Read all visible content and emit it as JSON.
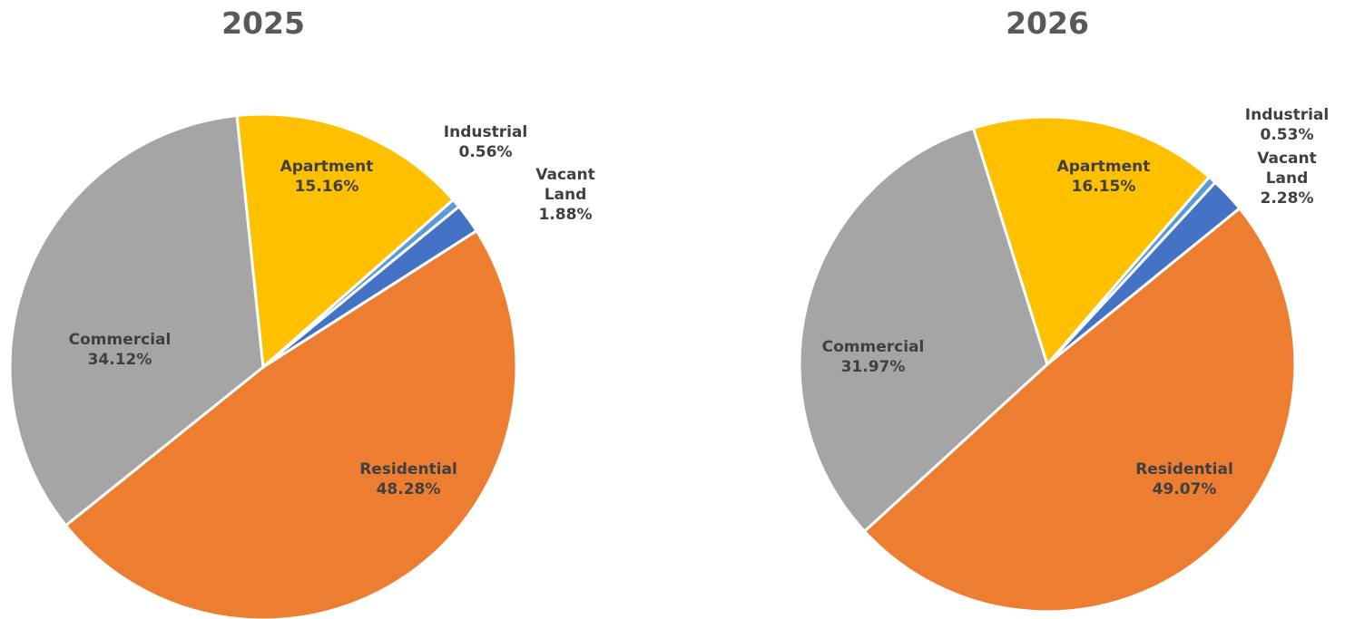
{
  "chart_data": [
    {
      "type": "pie",
      "title": "2025",
      "slices": [
        {
          "name": "Residential",
          "value": 48.28,
          "value_label": "48.28%",
          "color": "#ED7D31"
        },
        {
          "name": "Commercial",
          "value": 34.12,
          "value_label": "34.12%",
          "color": "#A5A5A5"
        },
        {
          "name": "Apartment",
          "value": 15.16,
          "value_label": "15.16%",
          "color": "#FFC000"
        },
        {
          "name": "Industrial",
          "value": 0.56,
          "value_label": "0.56%",
          "color": "#5B9BD5"
        },
        {
          "name": "Vacant Land",
          "value": 1.88,
          "value_label": "1.88%",
          "color": "#4472C4"
        }
      ]
    },
    {
      "type": "pie",
      "title": "2026",
      "slices": [
        {
          "name": "Residential",
          "value": 49.07,
          "value_label": "49.07%",
          "color": "#ED7D31"
        },
        {
          "name": "Commercial",
          "value": 31.97,
          "value_label": "31.97%",
          "color": "#A5A5A5"
        },
        {
          "name": "Apartment",
          "value": 16.15,
          "value_label": "16.15%",
          "color": "#FFC000"
        },
        {
          "name": "Industrial",
          "value": 0.53,
          "value_label": "0.53%",
          "color": "#5B9BD5"
        },
        {
          "name": "Vacant Land",
          "value": 2.28,
          "value_label": "2.28%",
          "color": "#4472C4"
        }
      ]
    }
  ]
}
